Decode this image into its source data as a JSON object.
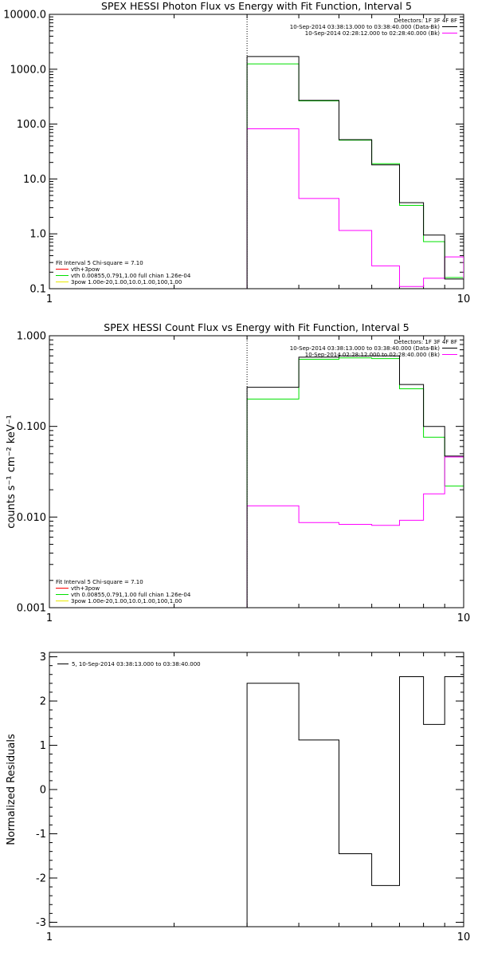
{
  "chart_data": [
    {
      "type": "line",
      "step": true,
      "title": "SPEX HESSI Photon Flux vs Energy with Fit Function, Interval 5",
      "xscale": "log",
      "yscale": "log",
      "xlim": [
        1,
        10
      ],
      "ylim": [
        0.1,
        10000
      ],
      "x_ticks": [
        "1",
        "10"
      ],
      "y_ticks": [
        "0.1",
        "1.0",
        "10.0",
        "100.0",
        "1000.0",
        "10000.0"
      ],
      "vline_x": 3,
      "bin_edges": [
        3,
        4,
        5,
        6,
        7,
        8,
        9,
        10
      ],
      "series": [
        {
          "name": "10-Sep-2014 03:38:13.000 to 03:38:40.000 (Data-Bk)",
          "color": "#000000",
          "values": [
            1700,
            270,
            52,
            18,
            3.7,
            0.95,
            0.15
          ]
        },
        {
          "name": "10-Sep-2014 02:28:12.000 to 02:28:40.000 (Bk)",
          "color": "#ff00ff",
          "values": [
            82,
            4.4,
            1.15,
            0.26,
            0.11,
            0.155,
            0.38
          ]
        },
        {
          "name": "vth 0.00855,0.791,1.00  full chian 1.26e-04",
          "color": "#00e000",
          "values": [
            1250,
            265,
            51,
            19,
            3.3,
            0.72,
            0.16
          ]
        }
      ],
      "legend": {
        "placement": "top-right",
        "detectors": "Detectors: 1F 3F 4F 8F",
        "entries": [
          {
            "label": "10-Sep-2014 03:38:13.000 to 03:38:40.000 (Data-Bk)",
            "color": "#000000"
          },
          {
            "label": "10-Sep-2014 02:28:12.000 to 02:28:40.000 (Bk)",
            "color": "#ff00ff"
          }
        ]
      },
      "fit_legend": {
        "placement": "bottom-left",
        "header": "Fit Interval 5   Chi-square = 7.10",
        "entries": [
          {
            "label": "vth+3pow",
            "color": "#ff0000"
          },
          {
            "label": "vth 0.00855,0.791,1.00  full chian 1.26e-04",
            "color": "#00e000"
          },
          {
            "label": "3pow 1.00e-20,1.00,10.0,1.00,100,1.00",
            "color": "#e8e800"
          }
        ]
      }
    },
    {
      "type": "line",
      "step": true,
      "title": "SPEX HESSI Count Flux vs Energy with Fit Function, Interval 5",
      "ylabel": "counts s⁻¹ cm⁻² keV⁻¹",
      "xscale": "log",
      "yscale": "log",
      "xlim": [
        1,
        10
      ],
      "ylim": [
        0.001,
        1.0
      ],
      "x_ticks": [
        "1",
        "10"
      ],
      "y_ticks": [
        "0.001",
        "0.010",
        "0.100",
        "1.000"
      ],
      "vline_x": 3,
      "bin_edges": [
        3,
        4,
        5,
        6,
        7,
        8,
        9,
        10
      ],
      "series": [
        {
          "name": "10-Sep-2014 03:38:13.000 to 03:38:40.000 (Data-Bk)",
          "color": "#000000",
          "values": [
            0.27,
            0.58,
            0.6,
            0.6,
            0.29,
            0.1,
            0.047
          ]
        },
        {
          "name": "10-Sep-2014 02:28:12.000 to 02:28:40.000 (Bk)",
          "color": "#ff00ff",
          "values": [
            0.0133,
            0.0087,
            0.0083,
            0.0081,
            0.0092,
            0.018,
            0.046
          ]
        },
        {
          "name": "vth 0.00855,0.791,1.00  full chian 1.26e-04",
          "color": "#00e000",
          "values": [
            0.2,
            0.55,
            0.57,
            0.56,
            0.26,
            0.076,
            0.022
          ]
        }
      ],
      "legend": {
        "placement": "top-right",
        "detectors": "Detectors: 1F 3F 4F 8F",
        "entries": [
          {
            "label": "10-Sep-2014 03:38:13.000 to 03:38:40.000 (Data-Bk)",
            "color": "#000000"
          },
          {
            "label": "10-Sep-2014 02:28:12.000 to 02:28:40.000 (Bk)",
            "color": "#ff00ff"
          }
        ]
      },
      "fit_legend": {
        "placement": "bottom-left",
        "header": "Fit Interval 5   Chi-square = 7.10",
        "entries": [
          {
            "label": "vth+3pow",
            "color": "#ff0000"
          },
          {
            "label": "vth 0.00855,0.791,1.00  full chian 1.26e-04",
            "color": "#00e000"
          },
          {
            "label": "3pow 1.00e-20,1.00,10.0,1.00,100,1.00",
            "color": "#e8e800"
          }
        ]
      }
    },
    {
      "type": "line",
      "step": true,
      "title": "",
      "ylabel": "Normalized Residuals",
      "xscale": "log",
      "yscale": "linear",
      "xlim": [
        1,
        10
      ],
      "ylim": [
        -3.1,
        3.1
      ],
      "x_ticks": [
        "1",
        "10"
      ],
      "y_ticks": [
        "-3",
        "-2",
        "-1",
        "0",
        "1",
        "2",
        "3"
      ],
      "bin_edges": [
        3,
        4,
        5,
        6,
        7,
        8,
        9,
        10
      ],
      "series": [
        {
          "name": "5, 10-Sep-2014 03:38:13.000 to 03:38:40.000",
          "color": "#000000",
          "values": [
            2.4,
            1.12,
            -1.45,
            -2.17,
            2.55,
            1.47,
            2.55
          ]
        }
      ],
      "legend": {
        "placement": "top-left",
        "entries": [
          {
            "label": "5, 10-Sep-2014 03:38:13.000 to 03:38:40.000",
            "color": "#000000"
          }
        ]
      }
    }
  ]
}
